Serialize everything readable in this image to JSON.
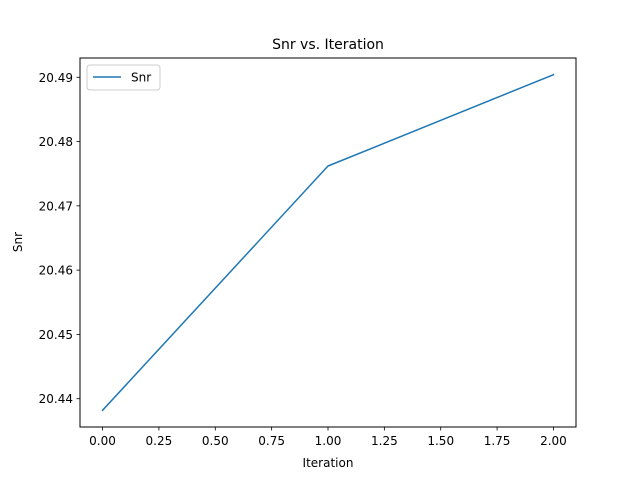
{
  "chart_data": {
    "type": "line",
    "title": "Snr vs. Iteration",
    "xlabel": "Iteration",
    "ylabel": "Snr",
    "x": [
      0,
      1,
      2
    ],
    "series": [
      {
        "name": "Snr",
        "values": [
          20.4382,
          20.4762,
          20.4904
        ],
        "color": "#1f77b4"
      }
    ],
    "xlim": [
      -0.1,
      2.1
    ],
    "ylim": [
      20.4356,
      20.493
    ],
    "xticks": [
      0.0,
      0.25,
      0.5,
      0.75,
      1.0,
      1.25,
      1.5,
      1.75,
      2.0
    ],
    "xtick_labels": [
      "0.00",
      "0.25",
      "0.50",
      "0.75",
      "1.00",
      "1.25",
      "1.50",
      "1.75",
      "2.00"
    ],
    "yticks": [
      20.44,
      20.45,
      20.46,
      20.47,
      20.48,
      20.49
    ],
    "ytick_labels": [
      "20.44",
      "20.45",
      "20.46",
      "20.47",
      "20.48",
      "20.49"
    ],
    "grid": false,
    "legend_position": "top-left"
  }
}
